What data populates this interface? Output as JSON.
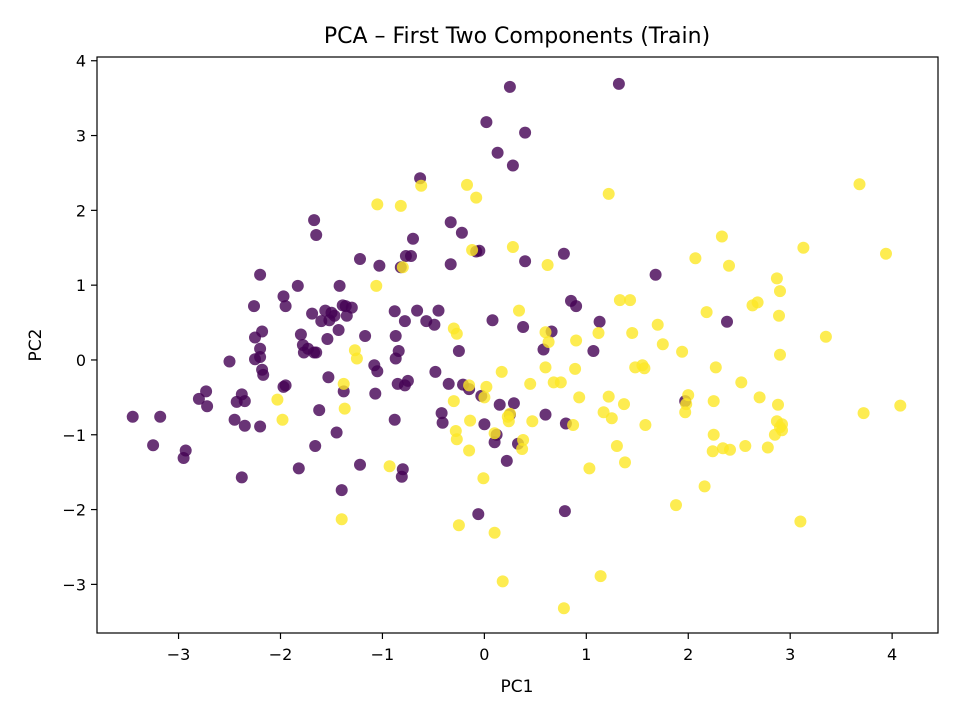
{
  "chart_data": {
    "type": "scatter",
    "title": "PCA – First Two Components (Train)",
    "xlabel": "PC1",
    "ylabel": "PC2",
    "xlim": [
      -3.8,
      4.45
    ],
    "ylim": [
      -3.65,
      4.05
    ],
    "xticks": [
      -3,
      -2,
      -1,
      0,
      1,
      2,
      3,
      4
    ],
    "yticks": [
      -3,
      -2,
      -1,
      0,
      1,
      2,
      3,
      4
    ],
    "grid": false,
    "colors": {
      "class_0": "#440154",
      "class_1": "#fde725"
    },
    "series": [
      {
        "color": "#440154",
        "points": [
          [
            -3.45,
            -0.76
          ],
          [
            -3.18,
            -0.76
          ],
          [
            -3.25,
            -1.14
          ],
          [
            -2.93,
            -1.21
          ],
          [
            -2.95,
            -1.31
          ],
          [
            -2.8,
            -0.52
          ],
          [
            -2.73,
            -0.42
          ],
          [
            -2.72,
            -0.62
          ],
          [
            -2.5,
            -0.02
          ],
          [
            -2.43,
            -0.56
          ],
          [
            -2.45,
            -0.8
          ],
          [
            -2.38,
            -0.46
          ],
          [
            -2.35,
            -0.55
          ],
          [
            -2.35,
            -0.88
          ],
          [
            -2.38,
            -1.57
          ],
          [
            -2.25,
            0.01
          ],
          [
            -2.25,
            0.3
          ],
          [
            -2.26,
            0.72
          ],
          [
            -2.2,
            1.14
          ],
          [
            -2.2,
            0.15
          ],
          [
            -2.2,
            0.04
          ],
          [
            -2.18,
            0.38
          ],
          [
            -2.18,
            -0.13
          ],
          [
            -2.17,
            -0.2
          ],
          [
            -2.2,
            -0.89
          ],
          [
            -1.97,
            0.85
          ],
          [
            -1.95,
            0.72
          ],
          [
            -1.97,
            -0.36
          ],
          [
            -1.95,
            -0.34
          ],
          [
            -1.83,
            0.99
          ],
          [
            -1.8,
            0.34
          ],
          [
            -1.78,
            0.2
          ],
          [
            -1.77,
            0.1
          ],
          [
            -1.73,
            0.15
          ],
          [
            -1.69,
            0.62
          ],
          [
            -1.67,
            0.1
          ],
          [
            -1.65,
            0.1
          ],
          [
            -1.67,
            1.87
          ],
          [
            -1.65,
            1.67
          ],
          [
            -1.62,
            -0.67
          ],
          [
            -1.6,
            0.52
          ],
          [
            -1.56,
            0.66
          ],
          [
            -1.54,
            0.28
          ],
          [
            -1.52,
            0.53
          ],
          [
            -1.5,
            0.63
          ],
          [
            -1.47,
            0.59
          ],
          [
            -1.43,
            0.4
          ],
          [
            -1.42,
            0.99
          ],
          [
            -1.39,
            0.73
          ],
          [
            -1.36,
            0.72
          ],
          [
            -1.35,
            0.59
          ],
          [
            -1.3,
            0.7
          ],
          [
            -1.82,
            -1.45
          ],
          [
            -1.66,
            -1.15
          ],
          [
            -1.45,
            -0.97
          ],
          [
            -1.53,
            -0.23
          ],
          [
            -1.38,
            -0.42
          ],
          [
            -1.22,
            1.35
          ],
          [
            -1.17,
            0.32
          ],
          [
            -1.08,
            -0.07
          ],
          [
            -1.05,
            -0.15
          ],
          [
            -1.03,
            1.26
          ],
          [
            -1.07,
            -0.45
          ],
          [
            -1.22,
            -1.4
          ],
          [
            -1.4,
            -1.74
          ],
          [
            -0.88,
            0.65
          ],
          [
            -0.87,
            0.32
          ],
          [
            -0.87,
            0.02
          ],
          [
            -0.84,
            0.12
          ],
          [
            -0.85,
            -0.32
          ],
          [
            -0.88,
            -0.8
          ],
          [
            -0.82,
            1.24
          ],
          [
            -0.77,
            1.39
          ],
          [
            -0.72,
            1.39
          ],
          [
            -0.78,
            0.52
          ],
          [
            -0.75,
            -0.28
          ],
          [
            -0.78,
            -0.34
          ],
          [
            -0.8,
            -1.46
          ],
          [
            -0.81,
            -1.56
          ],
          [
            -0.7,
            1.62
          ],
          [
            -0.63,
            2.43
          ],
          [
            -0.66,
            0.66
          ],
          [
            -0.57,
            0.52
          ],
          [
            -0.49,
            0.47
          ],
          [
            -0.45,
            0.66
          ],
          [
            -0.48,
            -0.16
          ],
          [
            -0.42,
            -0.71
          ],
          [
            -0.41,
            -0.84
          ],
          [
            -0.33,
            1.84
          ],
          [
            -0.33,
            1.28
          ],
          [
            -0.35,
            -0.32
          ],
          [
            -0.25,
            0.12
          ],
          [
            -0.22,
            1.7
          ],
          [
            -0.21,
            -0.33
          ],
          [
            -0.15,
            -0.39
          ],
          [
            -0.05,
            1.46
          ],
          [
            -0.08,
            1.45
          ],
          [
            -0.03,
            -0.48
          ],
          [
            0.02,
            3.18
          ],
          [
            0.0,
            -0.86
          ],
          [
            0.08,
            0.53
          ],
          [
            0.1,
            -1.1
          ],
          [
            0.12,
            -1.0
          ],
          [
            0.13,
            2.77
          ],
          [
            0.15,
            -0.6
          ],
          [
            0.25,
            3.65
          ],
          [
            0.28,
            2.6
          ],
          [
            0.22,
            -1.35
          ],
          [
            0.33,
            -1.12
          ],
          [
            0.4,
            3.04
          ],
          [
            0.38,
            0.44
          ],
          [
            0.4,
            1.32
          ],
          [
            0.25,
            -0.73
          ],
          [
            0.29,
            -0.58
          ],
          [
            -0.06,
            -2.06
          ],
          [
            0.58,
            0.14
          ],
          [
            0.6,
            -0.73
          ],
          [
            0.66,
            0.38
          ],
          [
            0.78,
            1.42
          ],
          [
            0.8,
            -0.85
          ],
          [
            0.79,
            -2.02
          ],
          [
            0.85,
            0.79
          ],
          [
            0.9,
            0.72
          ],
          [
            1.07,
            0.12
          ],
          [
            1.13,
            0.51
          ],
          [
            1.32,
            3.69
          ],
          [
            1.68,
            1.14
          ],
          [
            1.97,
            -0.55
          ],
          [
            2.38,
            0.51
          ]
        ]
      },
      {
        "color": "#fde725",
        "points": [
          [
            -2.03,
            -0.53
          ],
          [
            -1.98,
            -0.8
          ],
          [
            -1.38,
            -0.32
          ],
          [
            -1.37,
            -0.65
          ],
          [
            -1.27,
            0.13
          ],
          [
            -1.25,
            0.02
          ],
          [
            -1.4,
            -2.13
          ],
          [
            -1.05,
            2.08
          ],
          [
            -1.06,
            0.99
          ],
          [
            -0.93,
            -1.42
          ],
          [
            -0.82,
            2.06
          ],
          [
            -0.8,
            1.24
          ],
          [
            -0.62,
            2.33
          ],
          [
            -0.3,
            0.42
          ],
          [
            -0.27,
            0.35
          ],
          [
            -0.3,
            -0.55
          ],
          [
            -0.28,
            -0.95
          ],
          [
            -0.27,
            -1.06
          ],
          [
            -0.25,
            -2.21
          ],
          [
            -0.17,
            2.34
          ],
          [
            -0.15,
            -0.34
          ],
          [
            -0.14,
            -0.81
          ],
          [
            -0.15,
            -1.21
          ],
          [
            -0.08,
            2.17
          ],
          [
            -0.12,
            1.47
          ],
          [
            0.0,
            -0.5
          ],
          [
            -0.01,
            -1.58
          ],
          [
            0.02,
            -0.36
          ],
          [
            0.1,
            -0.98
          ],
          [
            0.1,
            -2.31
          ],
          [
            0.17,
            -0.16
          ],
          [
            0.18,
            -2.96
          ],
          [
            0.25,
            -0.72
          ],
          [
            0.23,
            -0.76
          ],
          [
            0.24,
            -0.82
          ],
          [
            0.28,
            1.51
          ],
          [
            0.34,
            0.66
          ],
          [
            0.37,
            -1.19
          ],
          [
            0.38,
            -1.07
          ],
          [
            0.45,
            -0.32
          ],
          [
            0.47,
            -0.82
          ],
          [
            0.6,
            0.37
          ],
          [
            0.6,
            -0.1
          ],
          [
            0.62,
            1.27
          ],
          [
            0.63,
            0.24
          ],
          [
            0.68,
            -0.3
          ],
          [
            0.75,
            -0.3
          ],
          [
            0.78,
            -3.32
          ],
          [
            0.87,
            -0.87
          ],
          [
            0.89,
            -0.12
          ],
          [
            0.9,
            0.26
          ],
          [
            0.93,
            -0.5
          ],
          [
            1.03,
            -1.45
          ],
          [
            1.14,
            -2.89
          ],
          [
            1.12,
            0.36
          ],
          [
            1.17,
            -0.7
          ],
          [
            1.22,
            -0.49
          ],
          [
            1.25,
            -0.78
          ],
          [
            1.22,
            2.22
          ],
          [
            1.3,
            -1.15
          ],
          [
            1.33,
            0.8
          ],
          [
            1.37,
            -0.59
          ],
          [
            1.38,
            -1.37
          ],
          [
            1.43,
            0.8
          ],
          [
            1.45,
            0.36
          ],
          [
            1.48,
            -0.1
          ],
          [
            1.55,
            -0.07
          ],
          [
            1.57,
            -0.11
          ],
          [
            1.58,
            -0.87
          ],
          [
            1.7,
            0.47
          ],
          [
            1.75,
            0.21
          ],
          [
            1.88,
            -1.94
          ],
          [
            1.94,
            0.11
          ],
          [
            1.97,
            -0.7
          ],
          [
            1.98,
            -0.59
          ],
          [
            2.0,
            -0.47
          ],
          [
            2.07,
            1.36
          ],
          [
            2.16,
            -1.69
          ],
          [
            2.18,
            0.64
          ],
          [
            2.24,
            -1.22
          ],
          [
            2.25,
            -0.55
          ],
          [
            2.25,
            -1.0
          ],
          [
            2.27,
            -0.1
          ],
          [
            2.33,
            1.65
          ],
          [
            2.34,
            -1.18
          ],
          [
            2.4,
            1.26
          ],
          [
            2.41,
            -1.2
          ],
          [
            2.52,
            -0.3
          ],
          [
            2.56,
            -1.15
          ],
          [
            2.63,
            0.73
          ],
          [
            2.68,
            0.77
          ],
          [
            2.7,
            -0.5
          ],
          [
            2.78,
            -1.17
          ],
          [
            2.85,
            -1.0
          ],
          [
            2.87,
            -0.82
          ],
          [
            2.87,
            1.09
          ],
          [
            2.88,
            -0.6
          ],
          [
            2.89,
            0.59
          ],
          [
            2.9,
            0.92
          ],
          [
            2.9,
            0.07
          ],
          [
            2.9,
            -0.9
          ],
          [
            2.92,
            -0.86
          ],
          [
            2.92,
            -0.94
          ],
          [
            3.1,
            -2.16
          ],
          [
            3.13,
            1.5
          ],
          [
            3.35,
            0.31
          ],
          [
            3.68,
            2.35
          ],
          [
            3.72,
            -0.71
          ],
          [
            3.94,
            1.42
          ],
          [
            4.08,
            -0.61
          ]
        ]
      }
    ]
  }
}
